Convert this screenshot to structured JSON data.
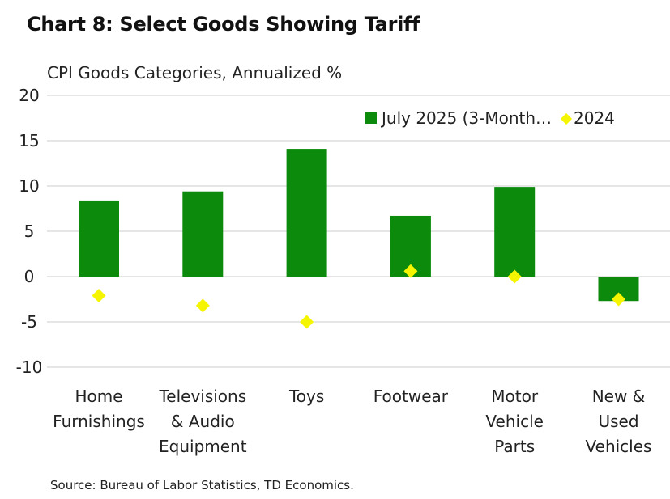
{
  "title": "Chart 8: Select Goods Showing Tariff",
  "source": "Source: Bureau of Labor Statistics, TD Economics.",
  "colors": {
    "bar": "#0b8a0b",
    "marker": "#f5f500",
    "grid": "#d6d6d6"
  },
  "chart_data": {
    "type": "bar",
    "title": "Chart 8: Select Goods Showing Tariff",
    "ylabel": "CPI Goods Categories, Annualized %",
    "xlabel": "",
    "ylim": [
      -10,
      20
    ],
    "yticks": [
      "20",
      "15",
      "10",
      "5",
      "0",
      "-5",
      "-10"
    ],
    "gridlines": true,
    "legend_position": "top-right",
    "categories": [
      [
        "Home",
        "Furnishings"
      ],
      [
        "Televisions",
        "& Audio",
        "Equipment"
      ],
      [
        "Toys"
      ],
      [
        "Footwear"
      ],
      [
        "Motor",
        "Vehicle",
        "Parts"
      ],
      [
        "New &",
        "Used",
        "Vehicles"
      ]
    ],
    "series": [
      {
        "name": "July 2025 (3-Month…",
        "kind": "bar",
        "values": [
          8.4,
          9.4,
          14.1,
          6.7,
          9.9,
          -2.7
        ]
      },
      {
        "name": "2024",
        "kind": "marker",
        "values": [
          -2.1,
          -3.2,
          -5.0,
          0.6,
          0.0,
          -2.5
        ]
      }
    ]
  }
}
